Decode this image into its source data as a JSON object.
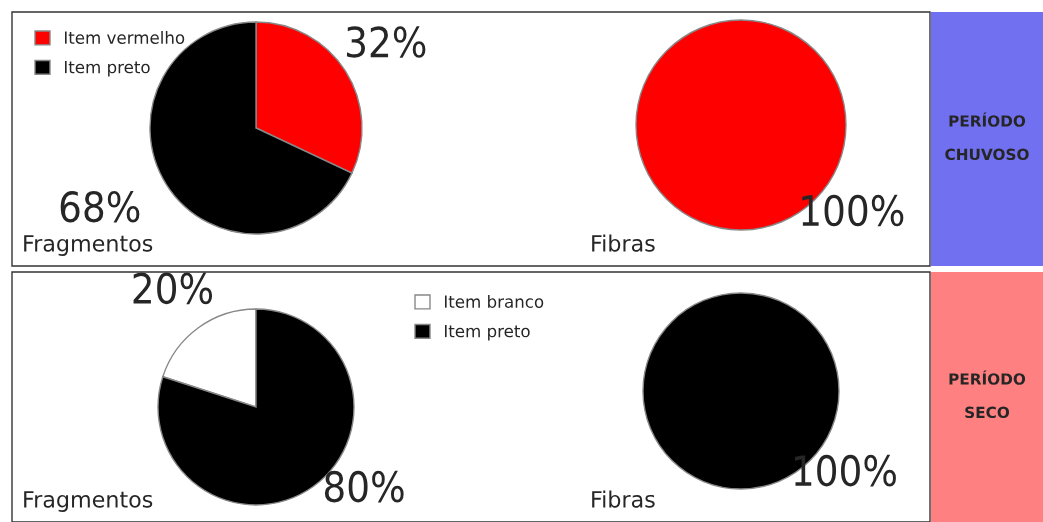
{
  "chart_data": [
    {
      "type": "pie",
      "title": "Fragmentos",
      "categories": [
        "Item vermelho",
        "Item preto"
      ],
      "values": [
        32,
        68
      ],
      "colors": [
        "#ff0000",
        "#000000"
      ],
      "value_labels": [
        "32%",
        "68%"
      ],
      "legend": "top left"
    },
    {
      "type": "pie",
      "title": "Fibras",
      "categories": [
        null
      ],
      "values": [
        100
      ],
      "colors": [
        "#ff0000"
      ],
      "value_labels": [
        "100%"
      ],
      "annotations": [
        "PERÍODO CHUVOSO"
      ]
    },
    {
      "type": "pie",
      "title": "Fragmentos",
      "categories": [
        "Item branco",
        "Item preto"
      ],
      "values": [
        20,
        80
      ],
      "colors": [
        "#ffffff",
        "#000000"
      ],
      "value_labels": [
        "20%",
        "80%"
      ],
      "legend": "top right"
    },
    {
      "type": "pie",
      "title": "Fibras",
      "categories": [
        null
      ],
      "values": [
        100
      ],
      "colors": [
        "#000000"
      ],
      "value_labels": [
        "100%"
      ],
      "annotations": [
        "PERÍODO SECO"
      ]
    }
  ]
}
